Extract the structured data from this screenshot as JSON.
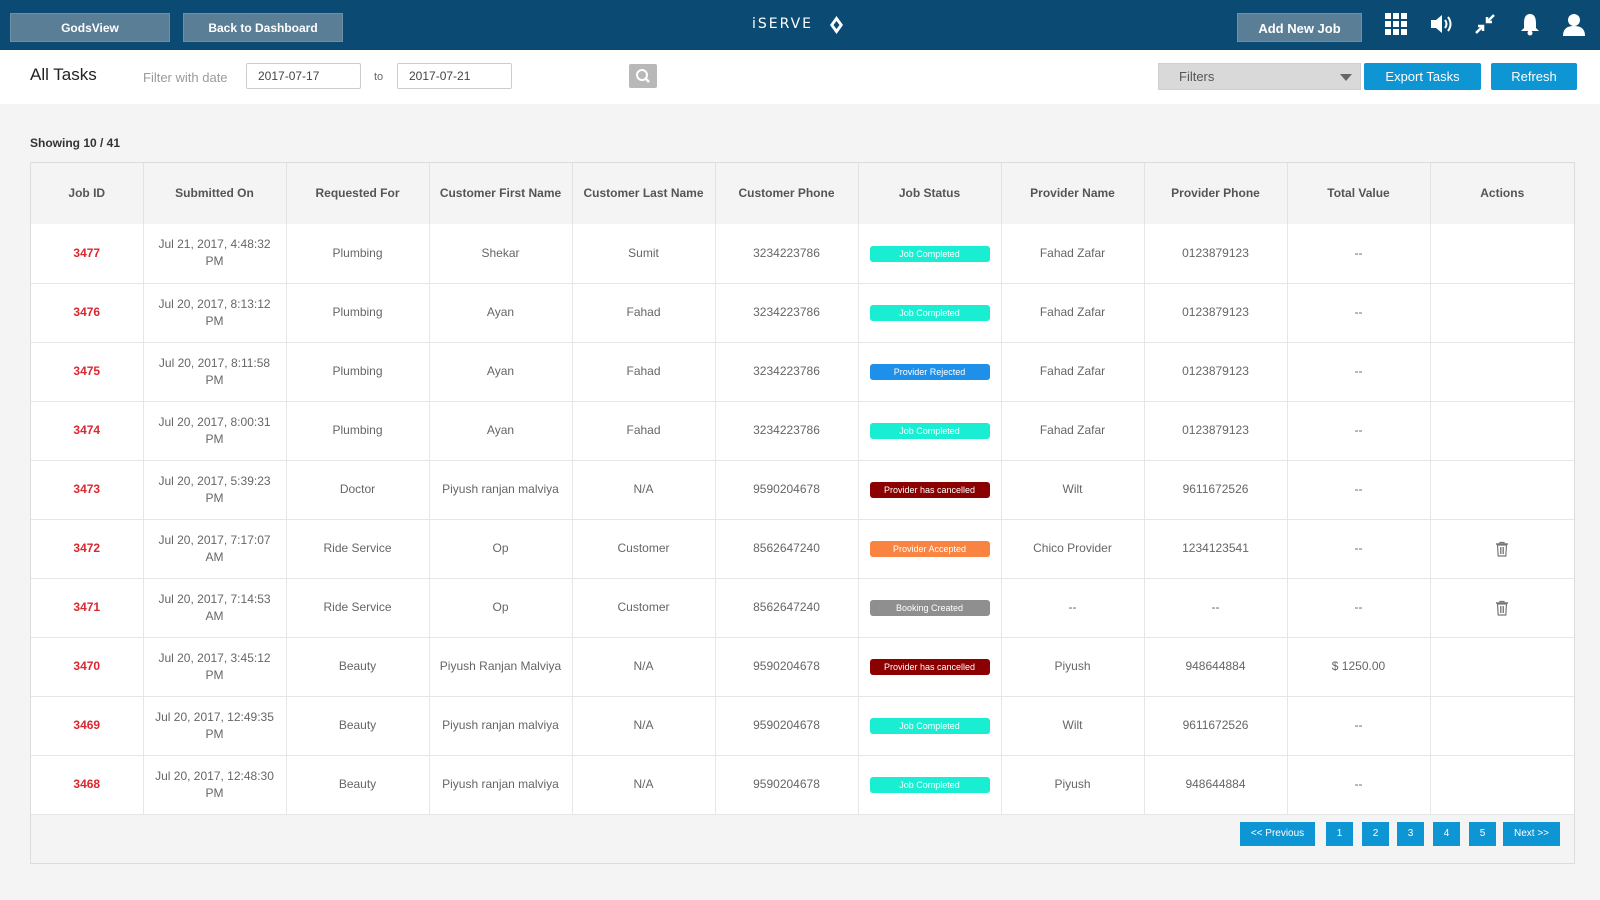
{
  "topbar": {
    "godsview_label": "GodsView",
    "back_label": "Back to Dashboard",
    "brand": "iSERVE",
    "add_job_label": "Add New Job"
  },
  "header": {
    "title": "All Tasks",
    "filter_label": "Filter with date",
    "date_from": "2017-07-17",
    "to_label": "to",
    "date_to": "2017-07-21",
    "filters_label": "Filters",
    "export_label": "Export Tasks",
    "refresh_label": "Refresh"
  },
  "showing": "Showing 10 / 41",
  "table": {
    "columns": [
      "Job ID",
      "Submitted On",
      "Requested For",
      "Customer First Name",
      "Customer Last Name",
      "Customer Phone",
      "Job Status",
      "Provider Name",
      "Provider Phone",
      "Total Value",
      "Actions"
    ],
    "rows": [
      {
        "id": "3477",
        "submitted": "Jul 21, 2017, 4:48:32 PM",
        "requested": "Plumbing",
        "first": "Shekar",
        "last": "Sumit",
        "phone": "3234223786",
        "status": "Job Completed",
        "status_color": "#19eed3",
        "provider": "Fahad Zafar",
        "provider_phone": "0123879123",
        "value": "--",
        "delete": false
      },
      {
        "id": "3476",
        "submitted": "Jul 20, 2017, 8:13:12 PM",
        "requested": "Plumbing",
        "first": "Ayan",
        "last": "Fahad",
        "phone": "3234223786",
        "status": "Job Completed",
        "status_color": "#19eed3",
        "provider": "Fahad Zafar",
        "provider_phone": "0123879123",
        "value": "--",
        "delete": false
      },
      {
        "id": "3475",
        "submitted": "Jul 20, 2017, 8:11:58 PM",
        "requested": "Plumbing",
        "first": "Ayan",
        "last": "Fahad",
        "phone": "3234223786",
        "status": "Provider Rejected",
        "status_color": "#1e90ea",
        "provider": "Fahad Zafar",
        "provider_phone": "0123879123",
        "value": "--",
        "delete": false
      },
      {
        "id": "3474",
        "submitted": "Jul 20, 2017, 8:00:31 PM",
        "requested": "Plumbing",
        "first": "Ayan",
        "last": "Fahad",
        "phone": "3234223786",
        "status": "Job Completed",
        "status_color": "#19eed3",
        "provider": "Fahad Zafar",
        "provider_phone": "0123879123",
        "value": "--",
        "delete": false
      },
      {
        "id": "3473",
        "submitted": "Jul 20, 2017, 5:39:23 PM",
        "requested": "Doctor",
        "first": "Piyush ranjan malviya",
        "last": "N/A",
        "phone": "9590204678",
        "status": "Provider has cancelled",
        "status_color": "#8b0000",
        "provider": "Wilt",
        "provider_phone": "9611672526",
        "value": "--",
        "delete": false
      },
      {
        "id": "3472",
        "submitted": "Jul 20, 2017, 7:17:07 AM",
        "requested": "Ride Service",
        "first": "Op",
        "last": "Customer",
        "phone": "8562647240",
        "status": "Provider Accepted",
        "status_color": "#f98441",
        "provider": "Chico Provider",
        "provider_phone": "1234123541",
        "value": "--",
        "delete": true
      },
      {
        "id": "3471",
        "submitted": "Jul 20, 2017, 7:14:53 AM",
        "requested": "Ride Service",
        "first": "Op",
        "last": "Customer",
        "phone": "8562647240",
        "status": "Booking Created",
        "status_color": "#8f8f8f",
        "provider": "--",
        "provider_phone": "--",
        "value": "--",
        "delete": true
      },
      {
        "id": "3470",
        "submitted": "Jul 20, 2017, 3:45:12 PM",
        "requested": "Beauty",
        "first": "Piyush Ranjan Malviya",
        "last": "N/A",
        "phone": "9590204678",
        "status": "Provider has cancelled",
        "status_color": "#8b0000",
        "provider": "Piyush",
        "provider_phone": "948644884",
        "value": "$ 1250.00",
        "delete": false
      },
      {
        "id": "3469",
        "submitted": "Jul 20, 2017, 12:49:35 PM",
        "requested": "Beauty",
        "first": "Piyush ranjan malviya",
        "last": "N/A",
        "phone": "9590204678",
        "status": "Job Completed",
        "status_color": "#19eed3",
        "provider": "Wilt",
        "provider_phone": "9611672526",
        "value": "--",
        "delete": false
      },
      {
        "id": "3468",
        "submitted": "Jul 20, 2017, 12:48:30 PM",
        "requested": "Beauty",
        "first": "Piyush ranjan malviya",
        "last": "N/A",
        "phone": "9590204678",
        "status": "Job Completed",
        "status_color": "#19eed3",
        "provider": "Piyush",
        "provider_phone": "948644884",
        "value": "--",
        "delete": false
      }
    ]
  },
  "pagination": {
    "prev_label": "<< Previous",
    "pages": [
      "1",
      "2",
      "3",
      "4",
      "5"
    ],
    "next_label": "Next >>"
  },
  "colors": {
    "topbar": "#0b4a72",
    "accent": "#0d95d4",
    "job_id": "#d9282f"
  },
  "icons": [
    "grid-icon",
    "volume-icon",
    "collapse-icon",
    "bell-icon",
    "user-icon",
    "search-icon",
    "trash-icon",
    "brand-logo-icon",
    "caret-down-icon"
  ]
}
